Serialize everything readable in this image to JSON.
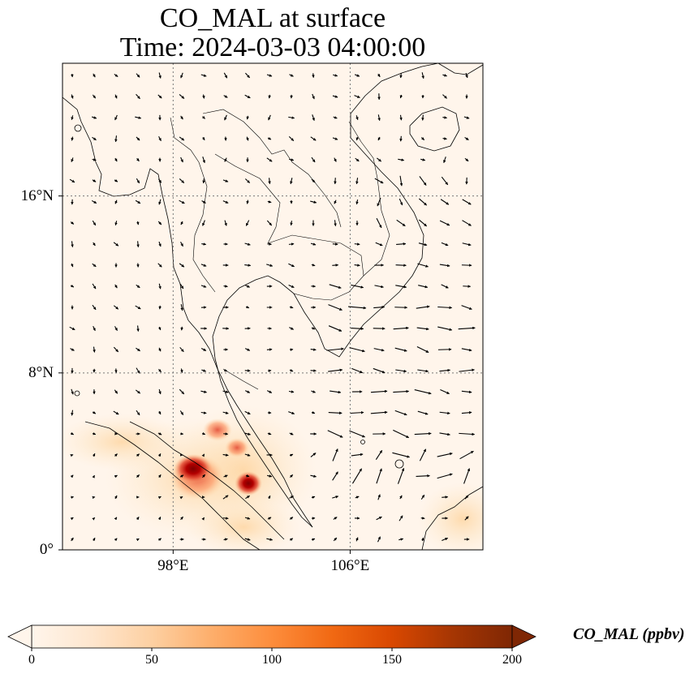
{
  "title": {
    "line1": "CO_MAL at surface",
    "line2": "Time: 2024-03-03 04:00:00"
  },
  "map": {
    "lon_range": [
      93,
      112
    ],
    "lat_range": [
      0,
      22
    ],
    "gridlines": "dotted",
    "lat_ticks": [
      {
        "value": 0,
        "label": "0°"
      },
      {
        "value": 8,
        "label": "8°N"
      },
      {
        "value": 16,
        "label": "16°N"
      }
    ],
    "lon_ticks": [
      {
        "value": 98,
        "label": "98°E"
      },
      {
        "value": 106,
        "label": "106°E"
      }
    ],
    "field_hotspots": [
      {
        "lon": 98.9,
        "lat": 3.6,
        "value_ppbv": 210
      },
      {
        "lon": 101.4,
        "lat": 3.0,
        "value_ppbv": 190
      },
      {
        "lon": 99.9,
        "lat": 5.5,
        "value_ppbv": 80
      },
      {
        "lon": 100.8,
        "lat": 4.8,
        "value_ppbv": 75
      },
      {
        "lon": 96.5,
        "lat": 5.0,
        "value_ppbv": 25
      },
      {
        "lon": 110.5,
        "lat": 1.5,
        "value_ppbv": 30
      }
    ],
    "wind_field": "quiver vectors, stronger northeasterlies over the South China Sea"
  },
  "colorbar": {
    "label": "CO_MAL (ppbv)",
    "min": 0,
    "max": 200,
    "ticks": [
      0,
      50,
      100,
      150,
      200
    ],
    "extend": "both",
    "colors": [
      "#fff5eb",
      "#fee6ce",
      "#fdd0a2",
      "#fdae6b",
      "#fd8d3c",
      "#f16913",
      "#d94801",
      "#a63603",
      "#7f2704"
    ]
  }
}
